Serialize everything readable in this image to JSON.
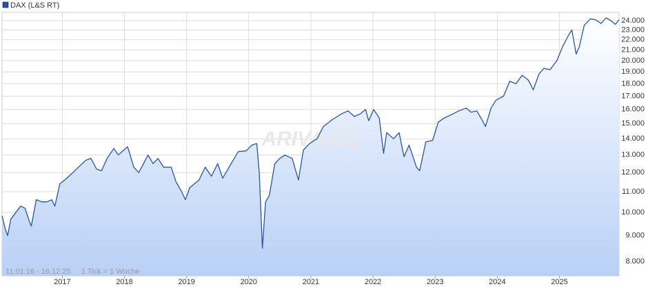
{
  "chart_data": {
    "type": "line",
    "title": "DAX (L&S RT)",
    "watermark": "ARIVA.DE",
    "annotations": [
      "11.01.16 - 16.12.25",
      "1 Tick = 1 Woche"
    ],
    "log_scale": true,
    "grid": true,
    "color": "#2255aa",
    "xlim": [
      2016.03,
      2025.96
    ],
    "xticks": [
      2017,
      2018,
      2019,
      2020,
      2021,
      2022,
      2023,
      2024,
      2025
    ],
    "ylim": [
      7490,
      24920
    ],
    "yticks": [
      {
        "value": 8000,
        "label": "8.000"
      },
      {
        "value": 9000,
        "label": "9.000"
      },
      {
        "value": 10000,
        "label": "10.000"
      },
      {
        "value": 11000,
        "label": "11.000"
      },
      {
        "value": 12000,
        "label": "12.000"
      },
      {
        "value": 13000,
        "label": "13.000"
      },
      {
        "value": 14000,
        "label": "14.000"
      },
      {
        "value": 15000,
        "label": "15.000"
      },
      {
        "value": 16000,
        "label": "16.000"
      },
      {
        "value": 17000,
        "label": "17.000"
      },
      {
        "value": 18000,
        "label": "18.000"
      },
      {
        "value": 19000,
        "label": "19.000"
      },
      {
        "value": 20000,
        "label": "20.000"
      },
      {
        "value": 21000,
        "label": "21.000"
      },
      {
        "value": 22000,
        "label": "22.000"
      },
      {
        "value": 23000,
        "label": "23.000"
      },
      {
        "value": 24000,
        "label": "24.000"
      }
    ],
    "x": [
      2016.03,
      2016.08,
      2016.12,
      2016.17,
      2016.25,
      2016.33,
      2016.4,
      2016.47,
      2016.5,
      2016.58,
      2016.67,
      2016.75,
      2016.83,
      2016.88,
      2016.96,
      2017.04,
      2017.17,
      2017.29,
      2017.38,
      2017.46,
      2017.55,
      2017.63,
      2017.72,
      2017.83,
      2017.9,
      2017.96,
      2018.05,
      2018.15,
      2018.23,
      2018.38,
      2018.46,
      2018.54,
      2018.63,
      2018.75,
      2018.83,
      2018.92,
      2018.98,
      2019.05,
      2019.2,
      2019.3,
      2019.4,
      2019.5,
      2019.58,
      2019.7,
      2019.83,
      2019.96,
      2020.05,
      2020.13,
      2020.17,
      2020.22,
      2020.27,
      2020.33,
      2020.42,
      2020.5,
      2020.58,
      2020.7,
      2020.8,
      2020.88,
      2020.98,
      2021.1,
      2021.2,
      2021.35,
      2021.5,
      2021.6,
      2021.7,
      2021.8,
      2021.88,
      2021.93,
      2022.01,
      2022.1,
      2022.17,
      2022.22,
      2022.33,
      2022.42,
      2022.5,
      2022.58,
      2022.7,
      2022.75,
      2022.85,
      2022.96,
      2023.05,
      2023.15,
      2023.25,
      2023.38,
      2023.5,
      2023.58,
      2023.67,
      2023.75,
      2023.81,
      2023.9,
      2023.98,
      2024.1,
      2024.2,
      2024.3,
      2024.4,
      2024.5,
      2024.58,
      2024.67,
      2024.75,
      2024.85,
      2024.96,
      2025.05,
      2025.15,
      2025.2,
      2025.27,
      2025.32,
      2025.4,
      2025.5,
      2025.58,
      2025.67,
      2025.75,
      2025.83,
      2025.9,
      2025.96
    ],
    "series": [
      {
        "name": "DAX (L&S RT)",
        "color": "#2255aa",
        "values": [
          9850,
          9300,
          9000,
          9700,
          10000,
          10300,
          10200,
          9600,
          9400,
          10600,
          10500,
          10500,
          10600,
          10300,
          11400,
          11600,
          12000,
          12400,
          12700,
          12800,
          12200,
          12100,
          12800,
          13400,
          13000,
          13200,
          13500,
          12300,
          12000,
          13000,
          12500,
          12800,
          12300,
          12300,
          11500,
          11000,
          10600,
          11200,
          11600,
          12300,
          11800,
          12500,
          11700,
          12400,
          13200,
          13250,
          13600,
          13700,
          12000,
          8500,
          10500,
          10800,
          12500,
          12800,
          13000,
          12800,
          11600,
          13300,
          13700,
          14000,
          14800,
          15300,
          15700,
          15900,
          15500,
          15700,
          16000,
          15200,
          16000,
          15400,
          13100,
          14400,
          14000,
          14400,
          12900,
          13600,
          12300,
          12100,
          13800,
          13900,
          15100,
          15400,
          15600,
          15900,
          16100,
          15800,
          15900,
          15300,
          14800,
          16100,
          16700,
          17000,
          18200,
          18000,
          18700,
          18300,
          17500,
          18800,
          19300,
          19200,
          20000,
          21300,
          22500,
          23000,
          20600,
          21300,
          23500,
          24200,
          24100,
          23700,
          24300,
          24000,
          23600,
          24100
        ]
      }
    ]
  }
}
